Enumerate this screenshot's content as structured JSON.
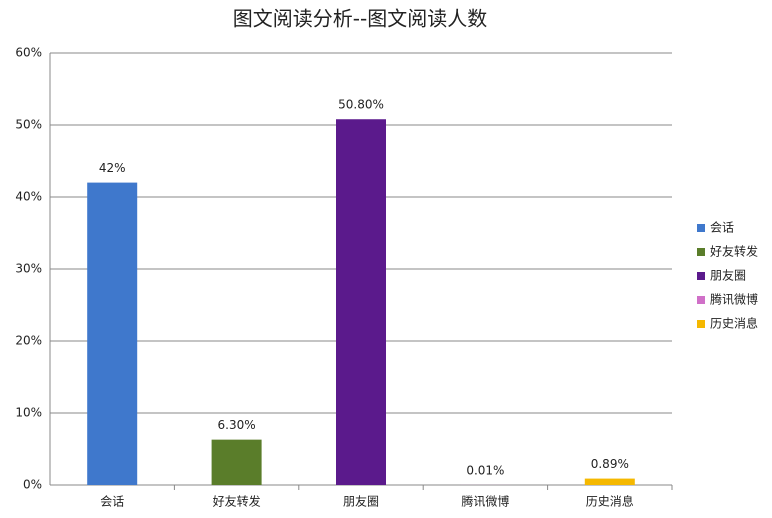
{
  "chart_data": {
    "type": "bar",
    "title": "图文阅读分析--图文阅读人数",
    "categories": [
      "会话",
      "好友转发",
      "朋友圈",
      "腾讯微博",
      "历史消息"
    ],
    "values": [
      42,
      6.3,
      50.8,
      0.01,
      0.89
    ],
    "value_labels": [
      "42%",
      "6.30%",
      "50.80%",
      "0.01%",
      "0.89%"
    ],
    "colors": [
      "#3f78cc",
      "#5a7d2a",
      "#5b1a8c",
      "#d070c8",
      "#f5b800"
    ],
    "ylim": [
      0,
      60
    ],
    "yticks": [
      {
        "value": 0,
        "label": "0%"
      },
      {
        "value": 10,
        "label": "10%"
      },
      {
        "value": 20,
        "label": "20%"
      },
      {
        "value": 30,
        "label": "30%"
      },
      {
        "value": 40,
        "label": "40%"
      },
      {
        "value": 50,
        "label": "50%"
      },
      {
        "value": 60,
        "label": "60%"
      }
    ],
    "grid": true,
    "legend": "right"
  }
}
